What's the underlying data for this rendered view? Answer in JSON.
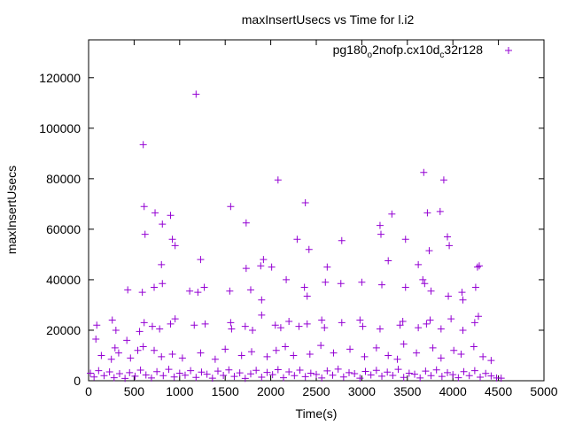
{
  "chart_data": {
    "type": "scatter",
    "title": "maxInsertUsecs vs Time for l.i2",
    "xlabel": "Time(s)",
    "ylabel": "maxInsertUsecs",
    "xlim": [
      0,
      5000
    ],
    "ylim": [
      0,
      135000
    ],
    "xticks": [
      0,
      500,
      1000,
      1500,
      2000,
      2500,
      3000,
      3500,
      4000,
      4500,
      5000
    ],
    "yticks": [
      0,
      20000,
      40000,
      60000,
      80000,
      100000,
      120000
    ],
    "grid": false,
    "legend_position": "top-right",
    "series": [
      {
        "name": "pg180_o2nofp.cx10d_c32r128",
        "legend_parts": [
          {
            "text": "pg180",
            "sub": false
          },
          {
            "text": "o",
            "sub": true
          },
          {
            "text": "2nofp.cx10d",
            "sub": false
          },
          {
            "text": "c",
            "sub": true
          },
          {
            "text": "32r128",
            "sub": false
          }
        ],
        "color": "#9400d3",
        "marker": "plus",
        "points": [
          [
            600,
            93500
          ],
          [
            1180,
            113500
          ],
          [
            2080,
            79500
          ],
          [
            3680,
            82500
          ],
          [
            3900,
            79500
          ],
          [
            610,
            69000
          ],
          [
            730,
            66500
          ],
          [
            900,
            65500
          ],
          [
            1560,
            69000
          ],
          [
            1730,
            62500
          ],
          [
            2380,
            70500
          ],
          [
            3330,
            66000
          ],
          [
            3720,
            66500
          ],
          [
            3860,
            67000
          ],
          [
            620,
            58000
          ],
          [
            810,
            62000
          ],
          [
            920,
            56000
          ],
          [
            2290,
            56000
          ],
          [
            2780,
            55500
          ],
          [
            3200,
            61500
          ],
          [
            3210,
            58000
          ],
          [
            3480,
            56000
          ],
          [
            3940,
            57000
          ],
          [
            3960,
            53500
          ],
          [
            3740,
            51500
          ],
          [
            2420,
            52000
          ],
          [
            950,
            53500
          ],
          [
            1230,
            48000
          ],
          [
            1920,
            48000
          ],
          [
            1730,
            44500
          ],
          [
            1890,
            45500
          ],
          [
            2010,
            45000
          ],
          [
            2620,
            45000
          ],
          [
            3290,
            47500
          ],
          [
            3620,
            46000
          ],
          [
            4290,
            45500
          ],
          [
            4270,
            45000
          ],
          [
            800,
            46000
          ],
          [
            430,
            36000
          ],
          [
            590,
            35000
          ],
          [
            720,
            37000
          ],
          [
            810,
            38500
          ],
          [
            1110,
            35500
          ],
          [
            1200,
            35000
          ],
          [
            1270,
            37000
          ],
          [
            1550,
            35500
          ],
          [
            1780,
            36000
          ],
          [
            2170,
            40000
          ],
          [
            2370,
            37000
          ],
          [
            2600,
            39000
          ],
          [
            2770,
            38500
          ],
          [
            3000,
            39000
          ],
          [
            3220,
            38000
          ],
          [
            3480,
            37000
          ],
          [
            3670,
            40000
          ],
          [
            3690,
            38500
          ],
          [
            3760,
            35500
          ],
          [
            4100,
            35000
          ],
          [
            4250,
            37000
          ],
          [
            4110,
            32000
          ],
          [
            1900,
            32000
          ],
          [
            2400,
            33500
          ],
          [
            3950,
            33500
          ],
          [
            90,
            22000
          ],
          [
            80,
            16500
          ],
          [
            260,
            24000
          ],
          [
            300,
            20000
          ],
          [
            420,
            16000
          ],
          [
            560,
            19500
          ],
          [
            610,
            23000
          ],
          [
            700,
            21500
          ],
          [
            780,
            20500
          ],
          [
            900,
            22500
          ],
          [
            950,
            24500
          ],
          [
            1160,
            22000
          ],
          [
            1280,
            22500
          ],
          [
            1560,
            23000
          ],
          [
            1570,
            20500
          ],
          [
            1720,
            21500
          ],
          [
            1800,
            20000
          ],
          [
            1900,
            26000
          ],
          [
            2050,
            22000
          ],
          [
            2110,
            21000
          ],
          [
            2200,
            23500
          ],
          [
            2310,
            21500
          ],
          [
            2400,
            22500
          ],
          [
            2560,
            24000
          ],
          [
            2590,
            21000
          ],
          [
            2780,
            23000
          ],
          [
            2980,
            24000
          ],
          [
            3010,
            21500
          ],
          [
            3200,
            20500
          ],
          [
            3420,
            22000
          ],
          [
            3450,
            23500
          ],
          [
            3620,
            21000
          ],
          [
            3710,
            22500
          ],
          [
            3750,
            24000
          ],
          [
            3870,
            20500
          ],
          [
            3980,
            24500
          ],
          [
            4110,
            20000
          ],
          [
            4240,
            23000
          ],
          [
            4280,
            25500
          ],
          [
            140,
            10000
          ],
          [
            250,
            8500
          ],
          [
            290,
            13000
          ],
          [
            330,
            11000
          ],
          [
            460,
            9000
          ],
          [
            540,
            12000
          ],
          [
            600,
            13500
          ],
          [
            720,
            12000
          ],
          [
            800,
            9500
          ],
          [
            920,
            10500
          ],
          [
            1030,
            9000
          ],
          [
            1230,
            11000
          ],
          [
            1390,
            8500
          ],
          [
            1500,
            12500
          ],
          [
            1680,
            10000
          ],
          [
            1790,
            11500
          ],
          [
            1960,
            9500
          ],
          [
            2060,
            12000
          ],
          [
            2160,
            13500
          ],
          [
            2250,
            10000
          ],
          [
            2430,
            10500
          ],
          [
            2550,
            14000
          ],
          [
            2690,
            11000
          ],
          [
            2870,
            12500
          ],
          [
            3030,
            9500
          ],
          [
            3160,
            13000
          ],
          [
            3290,
            10000
          ],
          [
            3390,
            8500
          ],
          [
            3460,
            14500
          ],
          [
            3600,
            11000
          ],
          [
            3780,
            13000
          ],
          [
            3870,
            9000
          ],
          [
            4010,
            12000
          ],
          [
            4090,
            10500
          ],
          [
            4230,
            13500
          ],
          [
            4330,
            9500
          ],
          [
            4420,
            8000
          ],
          [
            4530,
            1000
          ],
          [
            20,
            3000
          ],
          [
            60,
            1500
          ],
          [
            110,
            4000
          ],
          [
            170,
            2000
          ],
          [
            230,
            3500
          ],
          [
            280,
            1200
          ],
          [
            340,
            2800
          ],
          [
            400,
            900
          ],
          [
            450,
            3200
          ],
          [
            510,
            1800
          ],
          [
            570,
            4200
          ],
          [
            630,
            2300
          ],
          [
            690,
            1100
          ],
          [
            750,
            3600
          ],
          [
            820,
            2000
          ],
          [
            880,
            4500
          ],
          [
            940,
            1500
          ],
          [
            1000,
            3000
          ],
          [
            1060,
            2200
          ],
          [
            1120,
            4000
          ],
          [
            1180,
            1300
          ],
          [
            1240,
            3400
          ],
          [
            1300,
            2600
          ],
          [
            1360,
            1000
          ],
          [
            1420,
            3800
          ],
          [
            1480,
            2100
          ],
          [
            1540,
            4300
          ],
          [
            1600,
            1700
          ],
          [
            1660,
            3100
          ],
          [
            1720,
            900
          ],
          [
            1780,
            2700
          ],
          [
            1840,
            4100
          ],
          [
            1900,
            1400
          ],
          [
            1960,
            3300
          ],
          [
            2020,
            2400
          ],
          [
            2080,
            4400
          ],
          [
            2140,
            1200
          ],
          [
            2200,
            3500
          ],
          [
            2260,
            2000
          ],
          [
            2320,
            4200
          ],
          [
            2380,
            1600
          ],
          [
            2440,
            3000
          ],
          [
            2500,
            2500
          ],
          [
            2560,
            1100
          ],
          [
            2620,
            3900
          ],
          [
            2680,
            2200
          ],
          [
            2740,
            4600
          ],
          [
            2800,
            1500
          ],
          [
            2860,
            3200
          ],
          [
            2920,
            2800
          ],
          [
            2980,
            1000
          ],
          [
            3040,
            3700
          ],
          [
            3100,
            2300
          ],
          [
            3160,
            4100
          ],
          [
            3220,
            1800
          ],
          [
            3280,
            3400
          ],
          [
            3340,
            2100
          ],
          [
            3400,
            4500
          ],
          [
            3460,
            1300
          ],
          [
            3520,
            3000
          ],
          [
            3580,
            2600
          ],
          [
            3640,
            1100
          ],
          [
            3700,
            3800
          ],
          [
            3760,
            2000
          ],
          [
            3820,
            4300
          ],
          [
            3880,
            1700
          ],
          [
            3940,
            3200
          ],
          [
            4000,
            2400
          ],
          [
            4060,
            1200
          ],
          [
            4120,
            3600
          ],
          [
            4180,
            2000
          ],
          [
            4240,
            4000
          ],
          [
            4300,
            1400
          ],
          [
            4360,
            2900
          ],
          [
            4420,
            1900
          ],
          [
            4480,
            1100
          ]
        ]
      }
    ]
  }
}
